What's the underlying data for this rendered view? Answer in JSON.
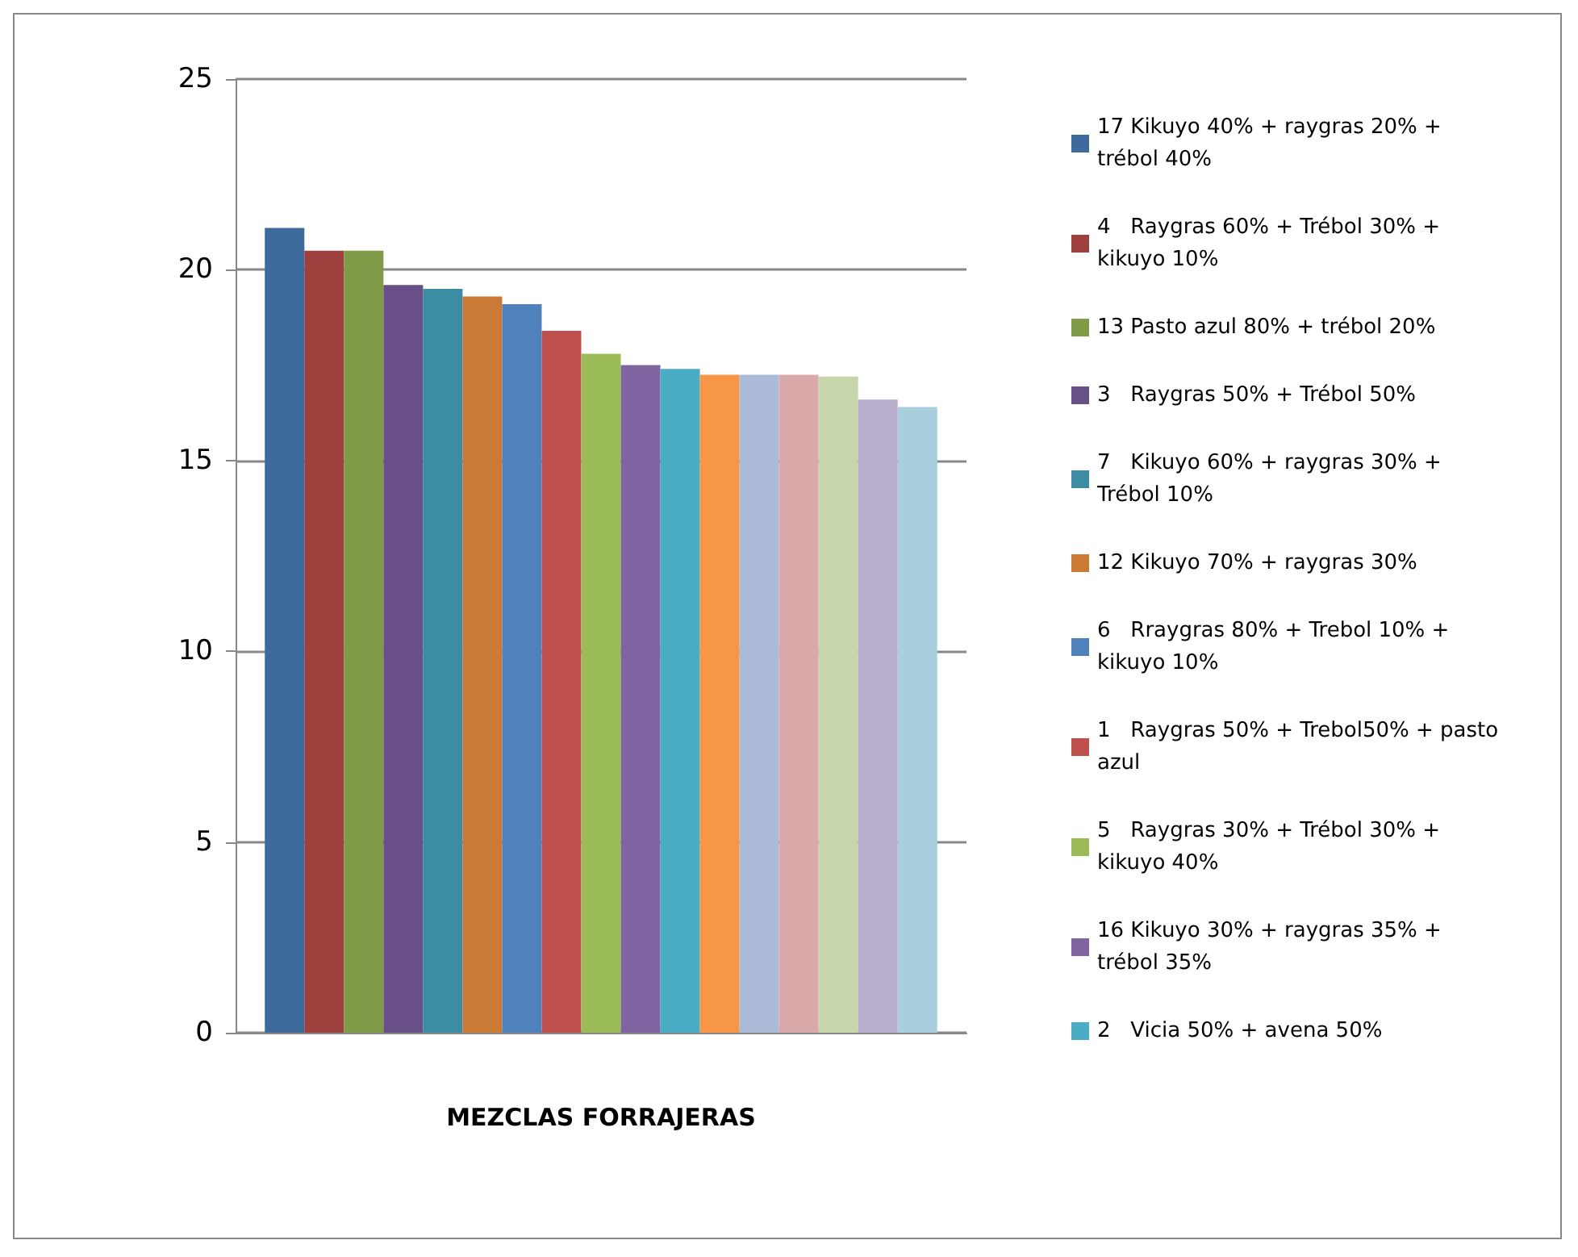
{
  "chart_data": {
    "type": "bar",
    "xlabel": "MEZCLAS FORRAJERAS",
    "categories": [
      null
    ],
    "ylim": [
      0,
      25
    ],
    "yticks": [
      0,
      5,
      10,
      15,
      20,
      25
    ],
    "grid": "y",
    "legend": "right",
    "series": [
      {
        "name": "17 Kikuyo 40% + raygras 20% + trébol 40%",
        "color": "#3e6a9c",
        "values": [
          21.1
        ]
      },
      {
        "name": "4   Raygras 60% + Trébol 30% + kikuyo 10%",
        "color": "#9e403d",
        "values": [
          20.5
        ]
      },
      {
        "name": "13 Pasto azul 80% + trébol 20%",
        "color": "#809a48",
        "values": [
          20.5
        ]
      },
      {
        "name": "3   Raygras 50% + Trébol 50%",
        "color": "#694f87",
        "values": [
          19.6
        ]
      },
      {
        "name": "7   Kikuyo 60% + raygras 30% + Trébol 10%",
        "color": "#3c8da3",
        "values": [
          19.5
        ]
      },
      {
        "name": "12 Kikuyo 70% + raygras 30%",
        "color": "#cb7a36",
        "values": [
          19.3
        ]
      },
      {
        "name": "6   Rraygras 80% + Trebol 10% + kikuyo 10%",
        "color": "#4f81bd",
        "values": [
          19.1
        ]
      },
      {
        "name": "1   Raygras 50% + Trebol50% + pasto azul",
        "color": "#c0504d",
        "values": [
          18.4
        ]
      },
      {
        "name": "5   Raygras 30% + Trébol 30% + kikuyo 40%",
        "color": "#9bbb59",
        "values": [
          17.8
        ]
      },
      {
        "name": "16 Kikuyo 30% + raygras 35% + trébol 35%",
        "color": "#8064a2",
        "values": [
          17.5
        ]
      },
      {
        "name": "2   Vicia 50% + avena 50%",
        "color": "#4bacc6",
        "values": [
          17.4
        ]
      },
      {
        "color": "#f79646",
        "values": [
          17.25
        ]
      },
      {
        "color": "#aabad7",
        "values": [
          17.25
        ]
      },
      {
        "color": "#d9aaa9",
        "values": [
          17.25
        ]
      },
      {
        "color": "#c6d5aa",
        "values": [
          17.2
        ]
      },
      {
        "color": "#b9aecb",
        "values": [
          16.6
        ]
      },
      {
        "color": "#a9cfdc",
        "values": [
          16.4
        ]
      }
    ]
  }
}
